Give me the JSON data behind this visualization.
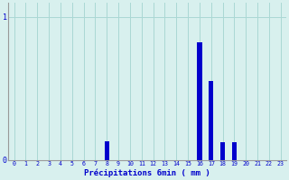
{
  "xlabel": "Précipitations 6min ( mm )",
  "background_color": "#d8f0ee",
  "bar_color": "#0000cc",
  "grid_color": "#aad8d4",
  "axis_color": "#999999",
  "text_color": "#0000cc",
  "xlim": [
    -0.5,
    23.5
  ],
  "ylim": [
    0,
    1.1
  ],
  "yticks": [
    0,
    1
  ],
  "xticks": [
    0,
    1,
    2,
    3,
    4,
    5,
    6,
    7,
    8,
    9,
    10,
    11,
    12,
    13,
    14,
    15,
    16,
    17,
    18,
    19,
    20,
    21,
    22,
    23
  ],
  "hours": [
    0,
    1,
    2,
    3,
    4,
    5,
    6,
    7,
    8,
    9,
    10,
    11,
    12,
    13,
    14,
    15,
    16,
    17,
    18,
    19,
    20,
    21,
    22,
    23
  ],
  "values": [
    0,
    0,
    0,
    0,
    0,
    0,
    0,
    0,
    0.13,
    0,
    0,
    0,
    0,
    0,
    0,
    0,
    0.82,
    0.55,
    0.12,
    0.12,
    0,
    0,
    0,
    0
  ],
  "bar_width": 0.4
}
